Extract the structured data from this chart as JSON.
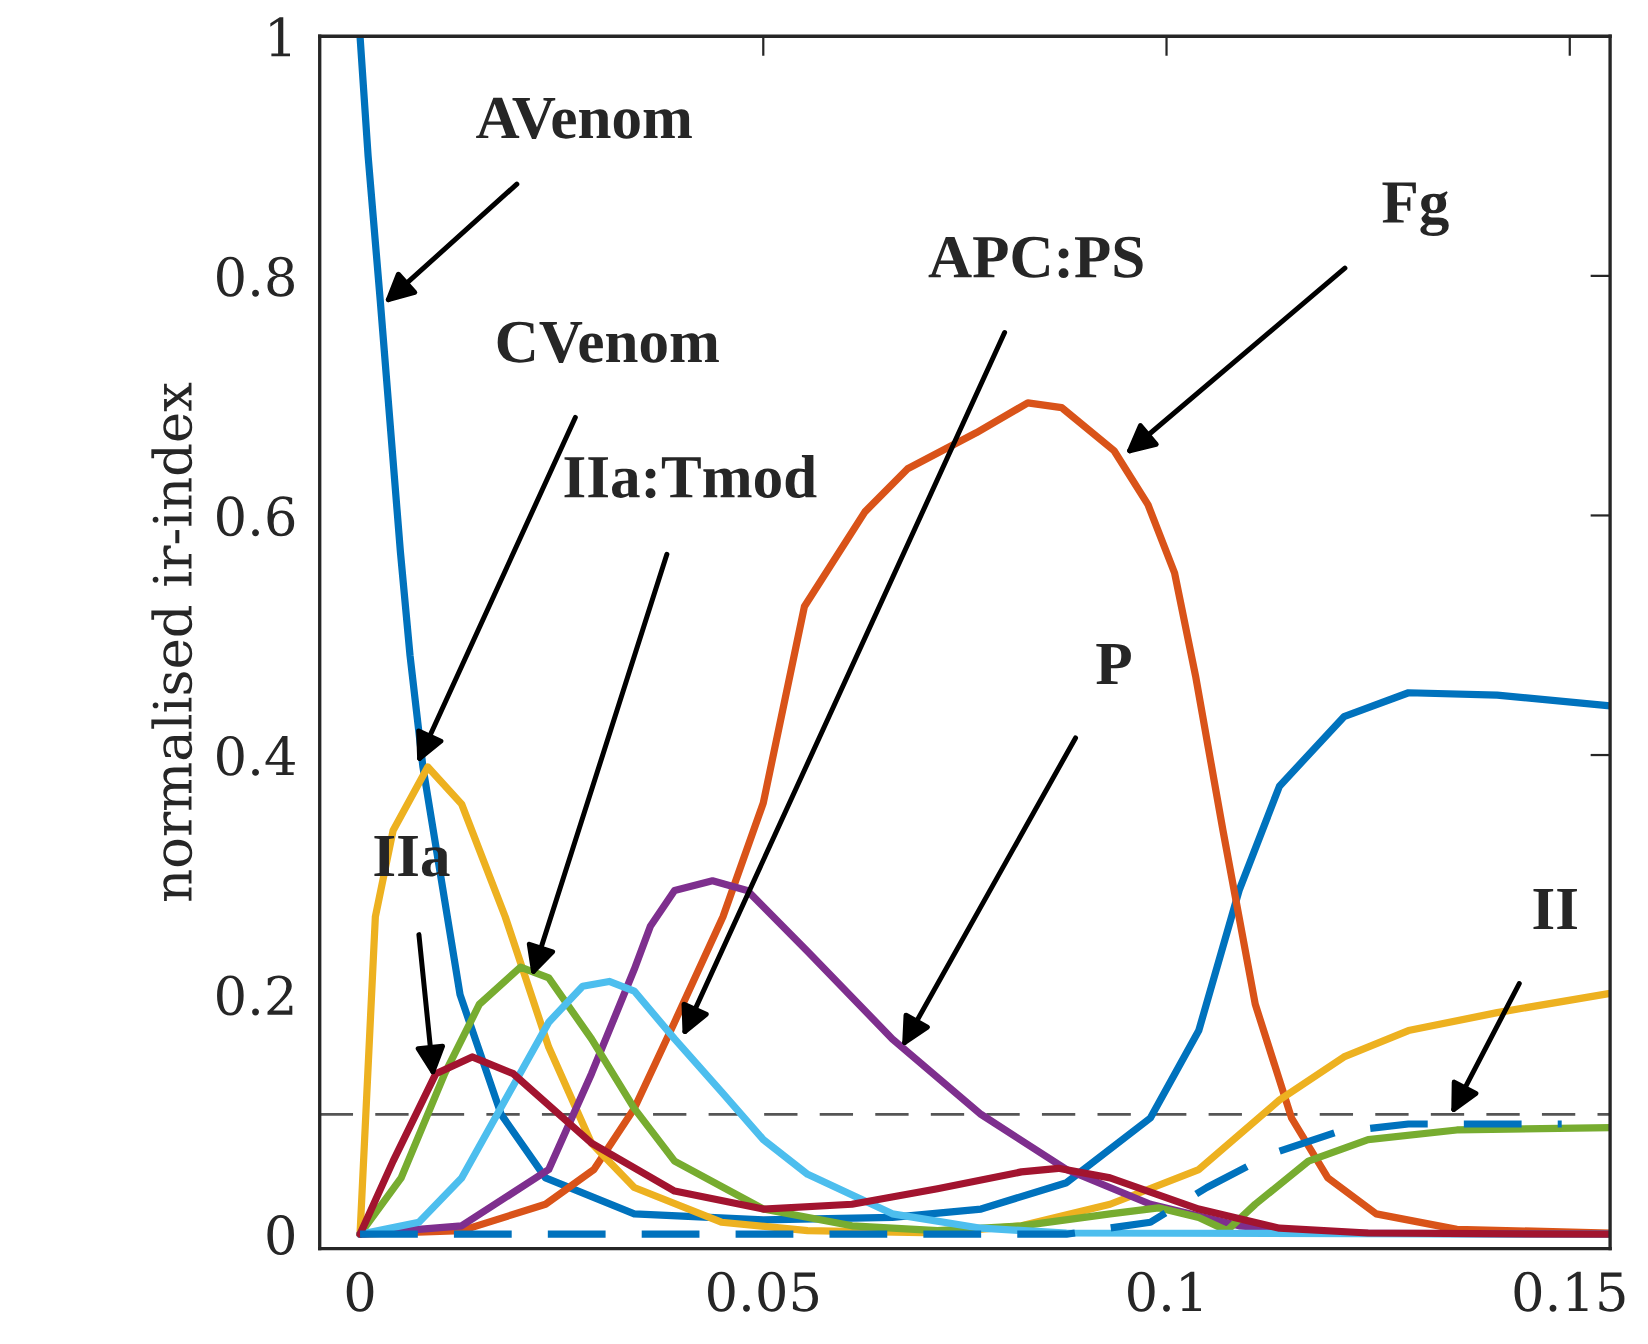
{
  "chart_data": {
    "type": "line",
    "ylabel": "normalised ir-index",
    "xlim": [
      -0.005,
      0.155
    ],
    "ylim": [
      -0.012,
      1
    ],
    "xticks": [
      0,
      0.05,
      0.1,
      0.15
    ],
    "yticks": [
      0,
      0.2,
      0.4,
      0.6,
      0.8,
      1
    ],
    "grid": false,
    "marker": "none",
    "line_style": "solid",
    "series": [
      {
        "color": "#0072bd",
        "x": [
          0,
          0.001,
          0.0025,
          0.005,
          0.0062,
          0.0078,
          0.0124,
          0.0175,
          0.023,
          0.034,
          0.05,
          0.066,
          0.077,
          0.0876,
          0.098,
          0.104,
          0.109,
          0.114,
          0.122,
          0.13,
          0.141,
          0.155
        ],
        "values": [
          1,
          0.9,
          0.78,
          0.57,
          0.483,
          0.39,
          0.2,
          0.1,
          0.047,
          0.017,
          0.012,
          0.014,
          0.021,
          0.043,
          0.097,
          0.17,
          0.287,
          0.374,
          0.432,
          0.452,
          0.45,
          0.441
        ]
      },
      {
        "color": "#d95319",
        "x": [
          0,
          0.0126,
          0.023,
          0.029,
          0.034,
          0.039,
          0.045,
          0.05,
          0.0551,
          0.0626,
          0.0679,
          0.0764,
          0.0828,
          0.087,
          0.0935,
          0.0977,
          0.101,
          0.1036,
          0.107,
          0.111,
          0.1155,
          0.12,
          0.126,
          0.136,
          0.155
        ],
        "values": [
          0,
          0.003,
          0.025,
          0.054,
          0.105,
          0.177,
          0.265,
          0.36,
          0.524,
          0.603,
          0.639,
          0.669,
          0.694,
          0.69,
          0.654,
          0.609,
          0.552,
          0.466,
          0.337,
          0.192,
          0.097,
          0.047,
          0.017,
          0.004,
          0.001
        ]
      },
      {
        "color": "#edb120",
        "x": [
          0,
          0.0019,
          0.0041,
          0.0084,
          0.0126,
          0.018,
          0.0234,
          0.0287,
          0.034,
          0.0448,
          0.0555,
          0.0716,
          0.082,
          0.093,
          0.104,
          0.114,
          0.122,
          0.13,
          0.141,
          0.155
        ],
        "values": [
          0,
          0.265,
          0.337,
          0.39,
          0.359,
          0.265,
          0.156,
          0.076,
          0.039,
          0.01,
          0.003,
          0.001,
          0.007,
          0.025,
          0.054,
          0.112,
          0.148,
          0.17,
          0.185,
          0.201
        ]
      },
      {
        "color": "#7e2f8e",
        "x": [
          0,
          0.0126,
          0.0234,
          0.0287,
          0.034,
          0.036,
          0.039,
          0.0437,
          0.048,
          0.0555,
          0.066,
          0.077,
          0.0876,
          0.098,
          0.109,
          0.12,
          0.155
        ],
        "values": [
          0,
          0.007,
          0.054,
          0.134,
          0.221,
          0.257,
          0.287,
          0.295,
          0.287,
          0.236,
          0.163,
          0.1,
          0.054,
          0.025,
          0.007,
          0.001,
          0
        ]
      },
      {
        "color": "#77ac30",
        "x": [
          0,
          0.0051,
          0.0105,
          0.0148,
          0.0199,
          0.0234,
          0.0287,
          0.034,
          0.039,
          0.05,
          0.061,
          0.0716,
          0.082,
          0.093,
          0.099,
          0.104,
          0.1075,
          0.111,
          0.1176,
          0.125,
          0.136,
          0.155
        ],
        "values": [
          0,
          0.047,
          0.134,
          0.192,
          0.223,
          0.214,
          0.163,
          0.105,
          0.061,
          0.021,
          0.007,
          0.003,
          0.007,
          0.017,
          0.022,
          0.014,
          0.003,
          0.025,
          0.061,
          0.079,
          0.087,
          0.089
        ]
      },
      {
        "color": "#4dbeee",
        "x": [
          0,
          0.0073,
          0.0126,
          0.018,
          0.0234,
          0.0276,
          0.0309,
          0.034,
          0.039,
          0.0448,
          0.05,
          0.0555,
          0.066,
          0.077,
          0.0876,
          0.155
        ],
        "values": [
          0,
          0.01,
          0.047,
          0.112,
          0.177,
          0.207,
          0.211,
          0.203,
          0.163,
          0.119,
          0.079,
          0.05,
          0.017,
          0.005,
          0.001,
          0
        ]
      },
      {
        "color": "#a2142f",
        "x": [
          0,
          0.0041,
          0.0094,
          0.0139,
          0.019,
          0.0287,
          0.039,
          0.05,
          0.061,
          0.0716,
          0.082,
          0.0866,
          0.093,
          0.104,
          0.114,
          0.125,
          0.155
        ],
        "values": [
          0,
          0.061,
          0.134,
          0.148,
          0.134,
          0.076,
          0.036,
          0.021,
          0.025,
          0.038,
          0.052,
          0.055,
          0.047,
          0.021,
          0.005,
          0.001,
          0
        ]
      },
      {
        "color": "#0072bd",
        "line_style": "dashed",
        "x": [
          0,
          0.0876,
          0.098,
          0.105,
          0.113,
          0.121,
          0.13,
          0.149
        ],
        "values": [
          0,
          0,
          0.01,
          0.039,
          0.067,
          0.085,
          0.092,
          0.092
        ]
      }
    ],
    "ref_lines": [
      {
        "axis": "y",
        "value": 0.1,
        "color": "#555555",
        "line_style": "dashed"
      }
    ],
    "annotations": [
      {
        "text": "AVenom",
        "x": 0.003,
        "y": 0.777
      },
      {
        "text": "CVenom",
        "x": 0.0071,
        "y": 0.393
      },
      {
        "text": "IIa:Tmod",
        "x": 0.0213,
        "y": 0.215
      },
      {
        "text": "APC:PS",
        "x": 0.04,
        "y": 0.165
      },
      {
        "text": "Fg",
        "x": 0.0949,
        "y": 0.651
      },
      {
        "text": "P",
        "x": 0.0672,
        "y": 0.156
      },
      {
        "text": "IIa",
        "x": 0.0091,
        "y": 0.131
      },
      {
        "text": "II",
        "x": 0.1353,
        "y": 0.1
      }
    ]
  }
}
